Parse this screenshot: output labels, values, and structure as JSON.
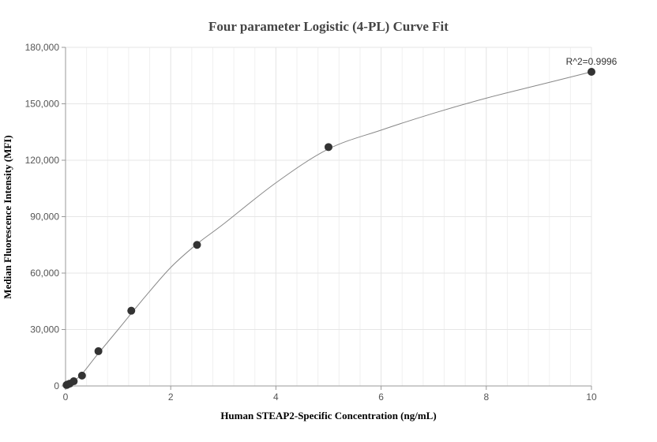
{
  "chart_data": {
    "type": "scatter",
    "title": "Four parameter Logistic (4-PL) Curve Fit",
    "xlabel": "Human STEAP2-Specific Concentration (ng/mL)",
    "ylabel": "Median Fluorescence Intensity (MFI)",
    "xlim": [
      0,
      10
    ],
    "ylim": [
      0,
      180000
    ],
    "x_ticks": [
      0,
      2,
      4,
      6,
      8,
      10
    ],
    "x_tick_labels": [
      "0",
      "2",
      "4",
      "6",
      "8",
      "10"
    ],
    "y_ticks": [
      0,
      30000,
      60000,
      90000,
      120000,
      150000,
      180000
    ],
    "y_tick_labels": [
      "0",
      "30,000",
      "60,000",
      "90,000",
      "120,000",
      "150,000",
      "180,000"
    ],
    "grid": true,
    "annotation": "R^2=0.9996",
    "points": {
      "x": [
        0.02,
        0.04,
        0.078,
        0.156,
        0.313,
        0.625,
        1.25,
        2.5,
        5,
        10
      ],
      "y": [
        500,
        800,
        1200,
        2500,
        5500,
        18500,
        40000,
        75000,
        127000,
        167000
      ]
    },
    "fit_curve": {
      "x": [
        0,
        0.1,
        0.3,
        0.6,
        1.0,
        1.5,
        2.0,
        2.5,
        3.0,
        4.0,
        5.0,
        6.0,
        7.0,
        8.0,
        9.0,
        10.0
      ],
      "y": [
        0,
        1600,
        6000,
        16500,
        30000,
        47000,
        63000,
        75500,
        86000,
        108000,
        126000,
        136000,
        145000,
        153000,
        160000,
        167000
      ]
    },
    "colors": {
      "point": "#333333",
      "curve": "#888888",
      "grid": "#e6e6e6",
      "axis": "#999999"
    }
  }
}
